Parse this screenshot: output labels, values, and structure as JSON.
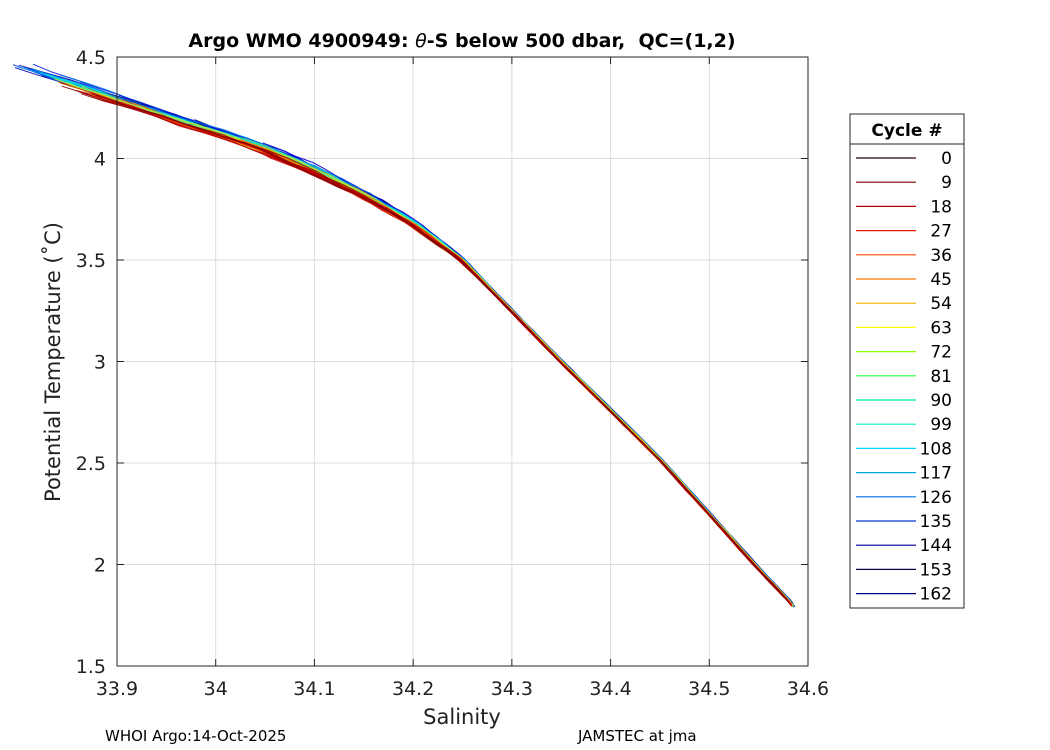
{
  "chart_data": {
    "type": "line",
    "title_prefix": "Argo WMO 4900949: ",
    "title_theta": "θ",
    "title_suffix": "-S below 500 dbar,  QC=(1,2)",
    "xlabel": "Salinity",
    "ylabel": "Potential Temperature (˚C)",
    "xlim": [
      33.9,
      34.6
    ],
    "ylim": [
      1.5,
      4.5
    ],
    "x_ticks": [
      "33.9",
      "34",
      "34.1",
      "34.2",
      "34.3",
      "34.4",
      "34.5",
      "34.6"
    ],
    "y_ticks": [
      "1.5",
      "2",
      "2.5",
      "3",
      "3.5",
      "4",
      "4.5"
    ],
    "grid": true,
    "legend": {
      "title": "Cycle #",
      "placement": "right",
      "entries": [
        "0",
        "9",
        "18",
        "27",
        "36",
        "45",
        "54",
        "63",
        "72",
        "81",
        "90",
        "99",
        "108",
        "117",
        "126",
        "135",
        "144",
        "153",
        "162"
      ],
      "colors": [
        "#2a0000",
        "#7f0000",
        "#b50000",
        "#e61a00",
        "#ff4a00",
        "#ff7800",
        "#f0b000",
        "#ffff00",
        "#8cff00",
        "#2aff3a",
        "#00f08c",
        "#00f0c8",
        "#00d8ff",
        "#00a8e8",
        "#0070e0",
        "#0038d0",
        "#00009a",
        "#10004a",
        "#00008a"
      ]
    },
    "series_envelope": {
      "description": "theta-S profiles for cycles 0-162 converge along a common curve",
      "common_curve": [
        {
          "s": 34.585,
          "t": 1.8
        },
        {
          "s": 34.55,
          "t": 1.98
        },
        {
          "s": 34.5,
          "t": 2.25
        },
        {
          "s": 34.45,
          "t": 2.52
        },
        {
          "s": 34.4,
          "t": 2.76
        },
        {
          "s": 34.35,
          "t": 3.0
        },
        {
          "s": 34.3,
          "t": 3.25
        },
        {
          "s": 34.25,
          "t": 3.5
        },
        {
          "s": 34.2,
          "t": 3.68
        },
        {
          "s": 34.15,
          "t": 3.82
        },
        {
          "s": 34.1,
          "t": 3.94
        },
        {
          "s": 34.05,
          "t": 4.05
        },
        {
          "s": 34.0,
          "t": 4.13
        }
      ],
      "shallow_spread_salinity": [
        33.97,
        34.2
      ],
      "shallow_spread_temperature": [
        3.7,
        4.48
      ]
    }
  },
  "footer": {
    "left": "WHOI Argo:14-Oct-2025",
    "right": "JAMSTEC at jma"
  }
}
